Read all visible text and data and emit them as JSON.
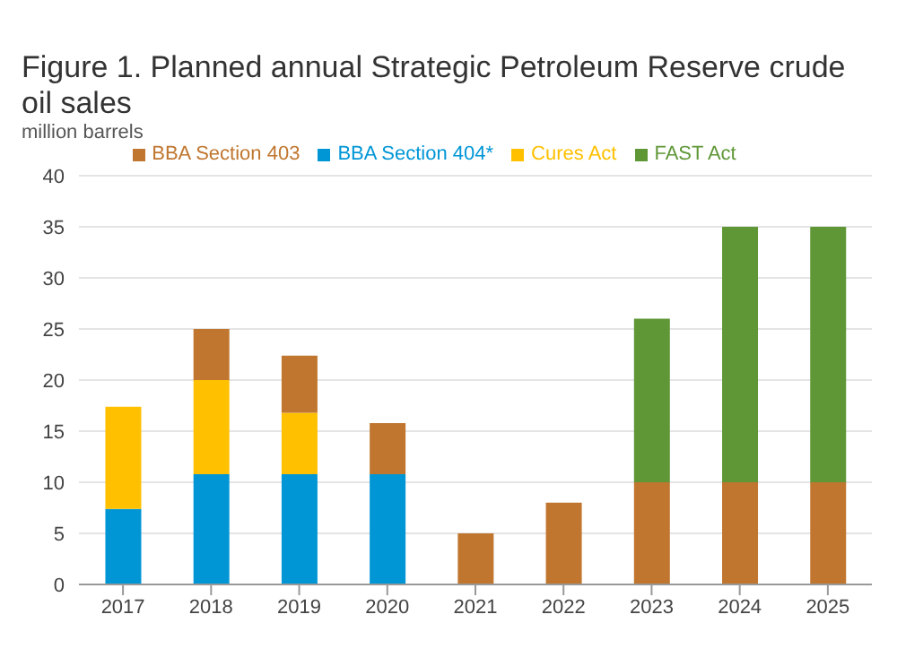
{
  "chart_data": {
    "type": "bar",
    "title": "Figure 1. Planned annual Strategic Petroleum Reserve crude oil sales",
    "subtitle": "million barrels",
    "categories": [
      "2017",
      "2018",
      "2019",
      "2020",
      "2021",
      "2022",
      "2023",
      "2024",
      "2025"
    ],
    "stacked": true,
    "series": [
      {
        "name": "BBA Section 404*",
        "color": "#0096d6",
        "values": [
          7.4,
          10.8,
          10.8,
          10.8,
          null,
          null,
          null,
          null,
          null
        ]
      },
      {
        "name": "Cures Act",
        "color": "#ffc000",
        "values": [
          10,
          9.2,
          6,
          null,
          null,
          null,
          null,
          null,
          null
        ]
      },
      {
        "name": "BBA Section 403",
        "color": "#c0762f",
        "values": [
          null,
          5,
          5.6,
          5,
          5,
          8,
          10,
          10,
          10
        ]
      },
      {
        "name": "FAST Act",
        "color": "#5f9737",
        "values": [
          null,
          null,
          null,
          null,
          null,
          null,
          16,
          25,
          25
        ]
      }
    ],
    "ylim": [
      0,
      40
    ],
    "yticks": [
      0,
      5,
      10,
      15,
      20,
      25,
      30,
      35,
      40
    ],
    "grid": "y",
    "legend": "top"
  }
}
